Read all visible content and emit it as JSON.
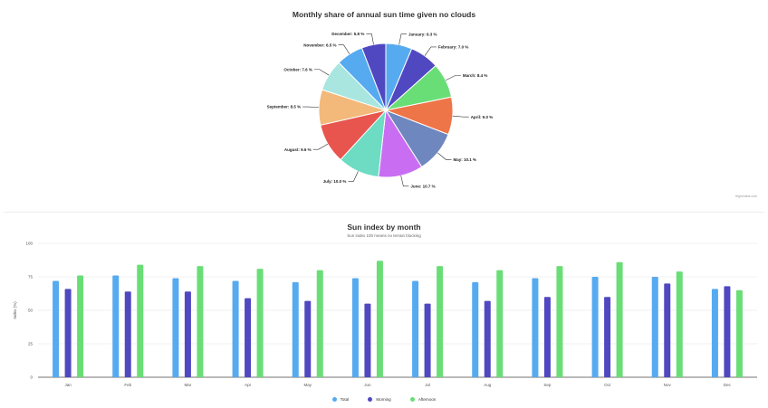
{
  "pie": {
    "chart_data": {
      "type": "pie",
      "title": "Monthly share of annual sun time given no clouds",
      "slices": [
        {
          "label": "January",
          "value": 6.3,
          "text": "January: 6.3 %",
          "color": "#56aaf0"
        },
        {
          "label": "February",
          "value": 7.0,
          "text": "February: 7.0 %",
          "color": "#5048c1"
        },
        {
          "label": "March",
          "value": 8.4,
          "text": "March: 8.4 %",
          "color": "#6ade76"
        },
        {
          "label": "April",
          "value": 9.0,
          "text": "April: 9.0 %",
          "color": "#ee7548"
        },
        {
          "label": "May",
          "value": 10.1,
          "text": "May: 10.1 %",
          "color": "#6f87bf"
        },
        {
          "label": "June",
          "value": 10.7,
          "text": "June: 10.7 %",
          "color": "#c96ef2"
        },
        {
          "label": "July",
          "value": 10.0,
          "text": "July: 10.0 %",
          "color": "#6ddcc2"
        },
        {
          "label": "August",
          "value": 9.6,
          "text": "August: 9.6 %",
          "color": "#e8554e"
        },
        {
          "label": "September",
          "value": 8.5,
          "text": "September: 8.5 %",
          "color": "#f3b97a"
        },
        {
          "label": "October",
          "value": 7.6,
          "text": "October: 7.6 %",
          "color": "#a8e6df"
        },
        {
          "label": "November",
          "value": 6.5,
          "text": "November: 6.5 %",
          "color": "#56aaf0"
        },
        {
          "label": "December",
          "value": 5.8,
          "text": "December: 5.8 %",
          "color": "#5048c1"
        }
      ]
    },
    "credit": "Highcharts.com"
  },
  "bar": {
    "chart_data": {
      "type": "bar",
      "title": "Sun index by month",
      "subtitle": "Sun index 100 means no terrain blocking",
      "ylabel": "Index (%)",
      "ylim": [
        0,
        100
      ],
      "yticks": [
        "0",
        "25",
        "50",
        "75",
        "100"
      ],
      "categories": [
        "Jan",
        "Feb",
        "Mar",
        "Apr",
        "May",
        "Jun",
        "Jul",
        "Aug",
        "Sep",
        "Oct",
        "Nov",
        "Dec"
      ],
      "series": [
        {
          "name": "Total",
          "color": "#56aaf0",
          "values": [
            72,
            76,
            74,
            72,
            71,
            74,
            72,
            71,
            74,
            75,
            75,
            66
          ]
        },
        {
          "name": "Morning",
          "color": "#5048c1",
          "values": [
            66,
            64,
            64,
            59,
            57,
            55,
            55,
            57,
            60,
            60,
            70,
            68
          ]
        },
        {
          "name": "Afternoon",
          "color": "#6ade76",
          "values": [
            76,
            84,
            83,
            81,
            80,
            87,
            83,
            80,
            83,
            86,
            79,
            65
          ]
        }
      ]
    }
  }
}
